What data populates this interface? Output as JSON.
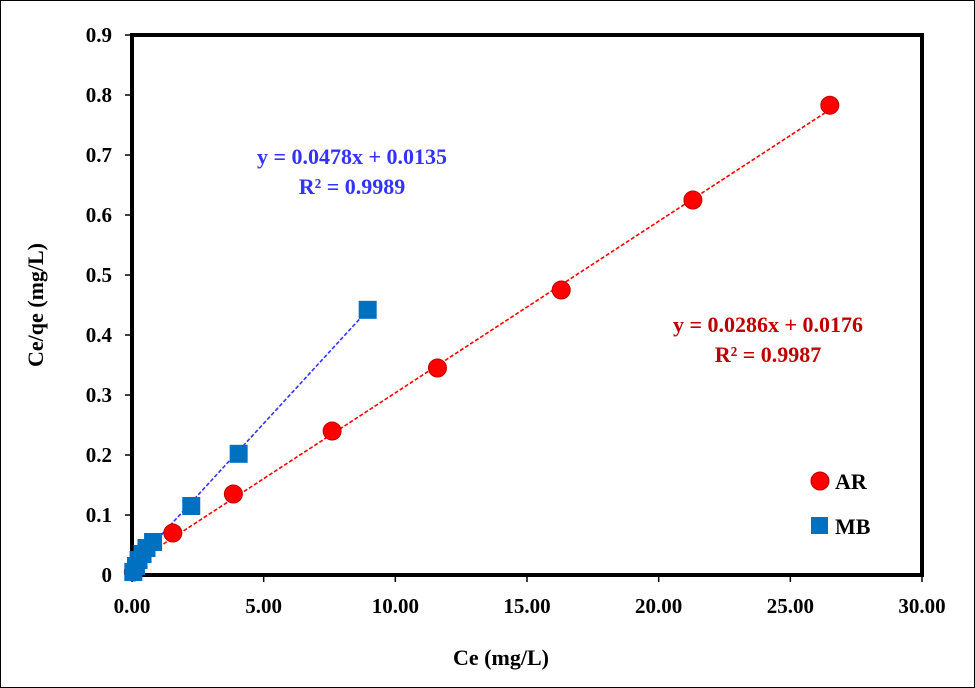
{
  "chart_data": {
    "type": "scatter",
    "title": "",
    "xlabel": "Ce (mg/L)",
    "ylabel": "Ce/qe (mg/L)",
    "xlim": [
      0,
      30
    ],
    "ylim": [
      0,
      0.9
    ],
    "xticks": [
      "0.00",
      "5.00",
      "10.00",
      "15.00",
      "20.00",
      "25.00",
      "30.00"
    ],
    "yticks": [
      "0",
      "0.1",
      "0.2",
      "0.3",
      "0.4",
      "0.5",
      "0.6",
      "0.7",
      "0.8",
      "0.9"
    ],
    "legend_position": "bottom-right",
    "series": [
      {
        "name": "AR",
        "color": "#ff0000",
        "marker": "circle",
        "trend_color": "#ff0000",
        "x": [
          0.05,
          1.55,
          3.85,
          7.6,
          11.6,
          16.3,
          21.3,
          26.5
        ],
        "y": [
          0.005,
          0.07,
          0.135,
          0.24,
          0.345,
          0.475,
          0.625,
          0.783
        ],
        "slope": 0.0286,
        "intercept": 0.0176,
        "equation": "y = 0.0286x + 0.0176",
        "r2": "R² = 0.9987",
        "label_color": "#c00000"
      },
      {
        "name": "MB",
        "color": "#0070c0",
        "marker": "square",
        "trend_color": "#3333ff",
        "x": [
          0.05,
          0.15,
          0.25,
          0.4,
          0.55,
          0.8,
          2.25,
          4.05,
          8.95
        ],
        "y": [
          0.005,
          0.015,
          0.025,
          0.035,
          0.045,
          0.055,
          0.115,
          0.202,
          0.442
        ],
        "slope": 0.0478,
        "intercept": 0.0135,
        "equation": "y = 0.0478x + 0.0135",
        "r2": "R² = 0.9989",
        "label_color": "#3333ff"
      }
    ]
  }
}
